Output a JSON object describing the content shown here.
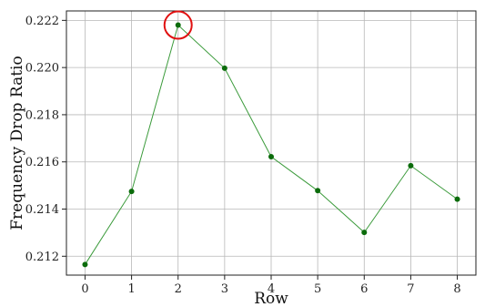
{
  "chart_data": {
    "type": "line",
    "title": "",
    "xlabel": "Row",
    "ylabel": "Frequency Drop Ratio",
    "x": [
      0,
      1,
      2,
      3,
      4,
      5,
      6,
      7,
      8
    ],
    "series": [
      {
        "values": [
          0.21165,
          0.21475,
          0.2218,
          0.21997,
          0.21622,
          0.21478,
          0.21301,
          0.21584,
          0.21442
        ],
        "color": "#3a9a3a",
        "marker_color": "#0b6b0b"
      }
    ],
    "xlim": [
      -0.4,
      8.4
    ],
    "ylim": [
      0.2112,
      0.2224
    ],
    "xticks": [
      "0",
      "1",
      "2",
      "3",
      "4",
      "5",
      "6",
      "7",
      "8"
    ],
    "yticks": [
      "0.212",
      "0.214",
      "0.216",
      "0.218",
      "0.220",
      "0.222"
    ],
    "grid": true,
    "highlight": {
      "x": 2,
      "value": 0.2218,
      "color": "#e01010"
    }
  }
}
